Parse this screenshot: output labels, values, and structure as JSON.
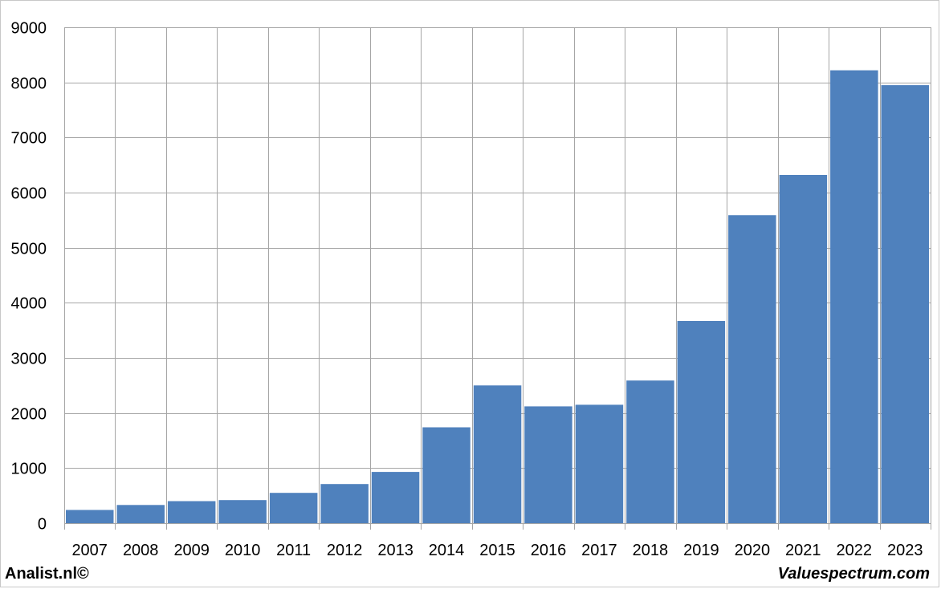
{
  "chart_data": {
    "type": "bar",
    "categories": [
      "2007",
      "2008",
      "2009",
      "2010",
      "2011",
      "2012",
      "2013",
      "2014",
      "2015",
      "2016",
      "2017",
      "2018",
      "2019",
      "2020",
      "2021",
      "2022",
      "2023"
    ],
    "values": [
      240,
      330,
      400,
      420,
      550,
      710,
      930,
      1740,
      2500,
      2120,
      2150,
      2590,
      3670,
      5590,
      6320,
      8220,
      7950
    ],
    "ylim": [
      0,
      9000
    ],
    "yticks": [
      0,
      1000,
      2000,
      3000,
      4000,
      5000,
      6000,
      7000,
      8000,
      9000
    ],
    "grid": true,
    "bar_color": "#4f81bd",
    "grid_color": "#a6a6a6"
  },
  "footer": {
    "left": "Analist.nl©",
    "right": "Valuespectrum.com"
  }
}
